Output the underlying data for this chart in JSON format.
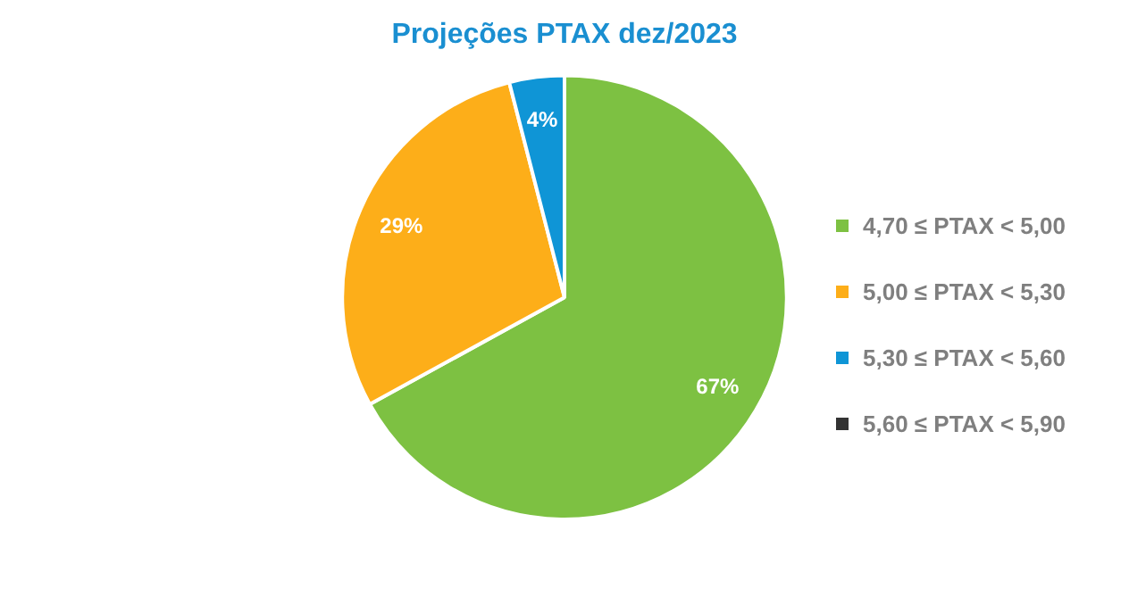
{
  "chart_data": {
    "type": "pie",
    "title": "Projeções PTAX dez/2023",
    "categories": [
      "4,70 ≤ PTAX < 5,00",
      "5,00 ≤ PTAX < 5,30",
      "5,30 ≤ PTAX < 5,60",
      "5,60 ≤ PTAX < 5,90"
    ],
    "values": [
      67,
      29,
      4,
      0
    ],
    "colors": [
      "#7dc142",
      "#fdae19",
      "#0f95d6",
      "#333333"
    ],
    "value_labels": [
      "67%",
      "29%",
      "4%",
      null
    ],
    "legend": "right"
  }
}
